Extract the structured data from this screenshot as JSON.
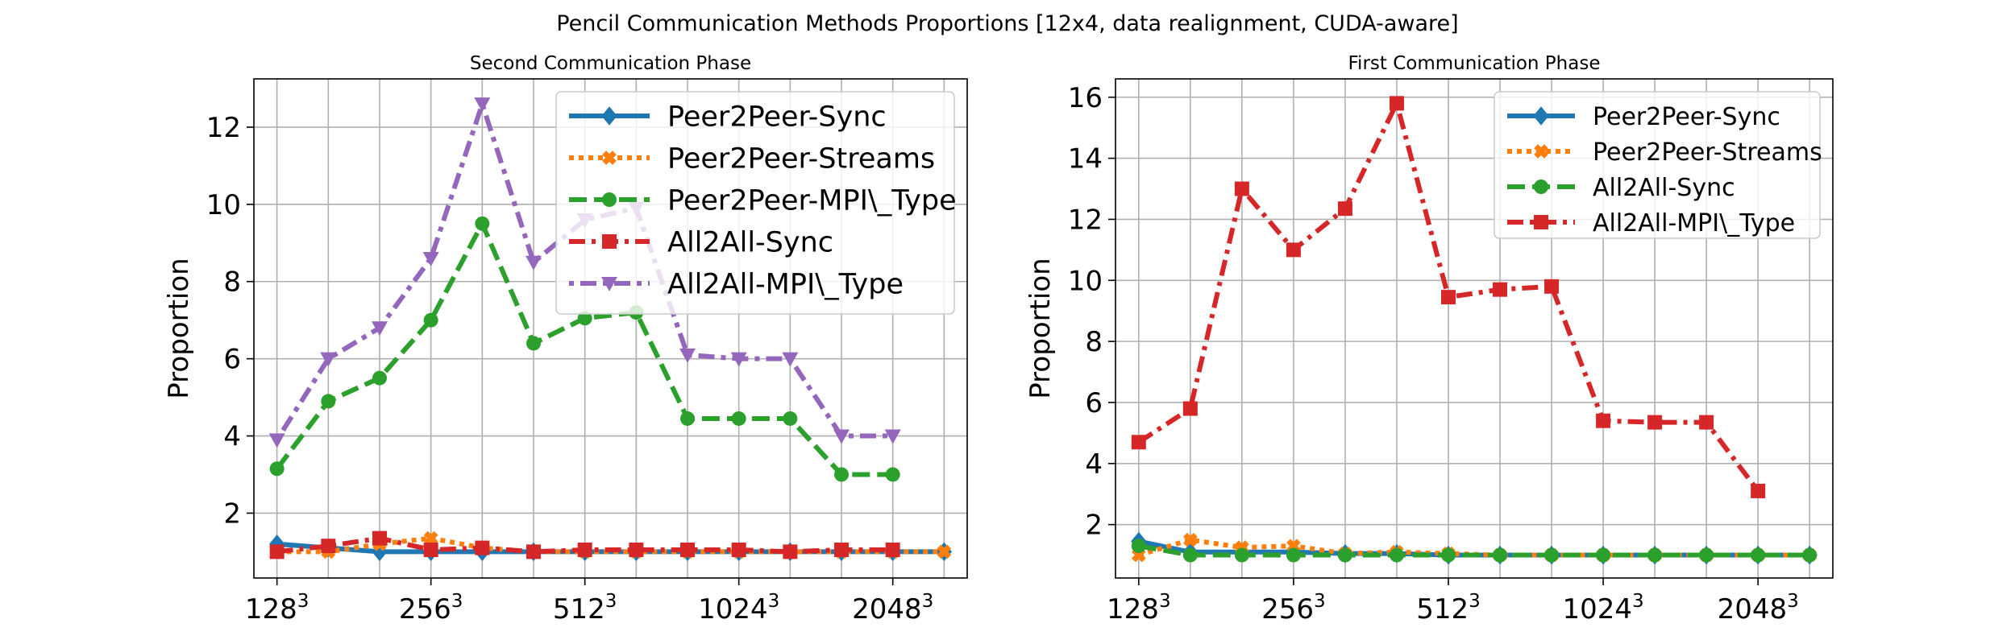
{
  "figure": {
    "suptitle": "Pencil Communication Methods Proportions [12x4, data realignment, CUDA-aware]"
  },
  "chart_data": [
    {
      "type": "line",
      "title": "Second Communication Phase",
      "xlabel": "",
      "ylabel": "Proportion",
      "x": [
        1,
        2,
        3,
        4,
        5,
        6,
        7,
        8,
        9,
        10,
        11,
        12,
        13,
        14
      ],
      "xtick_positions": [
        1,
        4,
        7,
        10,
        13
      ],
      "xtick_labels": [
        {
          "base": "128",
          "exp": "3"
        },
        {
          "base": "256",
          "exp": "3"
        },
        {
          "base": "512",
          "exp": "3"
        },
        {
          "base": "1024",
          "exp": "3"
        },
        {
          "base": "2048",
          "exp": "3"
        }
      ],
      "yticks": [
        2,
        4,
        6,
        8,
        10,
        12
      ],
      "xlim": [
        0.55,
        14.45
      ],
      "ylim": [
        0.32,
        13.25
      ],
      "grid": true,
      "legend_position": "upper-right",
      "series": [
        {
          "name": "Peer2Peer-Sync",
          "color": "#1f77b4",
          "dash": "solid",
          "marker": "diamond",
          "values": [
            1.2,
            1.1,
            1.0,
            1.0,
            1.0,
            1.0,
            1.0,
            1.0,
            1.0,
            1.0,
            1.0,
            1.0,
            1.0,
            1.0
          ]
        },
        {
          "name": "Peer2Peer-Streams",
          "color": "#ff7f0e",
          "dash": "dotted",
          "marker": "x",
          "values": [
            1.0,
            1.0,
            1.2,
            1.35,
            1.1,
            1.0,
            1.0,
            1.0,
            1.0,
            1.0,
            1.0,
            1.0,
            1.0,
            1.0
          ]
        },
        {
          "name": "Peer2Peer-MPI\\_Type",
          "color": "#2ca02c",
          "dash": "dashed",
          "marker": "circle",
          "values": [
            3.15,
            4.9,
            5.5,
            7.0,
            9.5,
            6.4,
            7.05,
            7.2,
            4.45,
            4.45,
            4.45,
            3.0,
            3.0,
            null
          ]
        },
        {
          "name": "All2All-Sync",
          "color": "#d62728",
          "dash": "dashdot",
          "marker": "square",
          "values": [
            1.0,
            1.15,
            1.35,
            1.05,
            1.1,
            1.0,
            1.05,
            1.05,
            1.05,
            1.05,
            1.0,
            1.05,
            1.05,
            null
          ]
        },
        {
          "name": "All2All-MPI\\_Type",
          "color": "#9467bd",
          "dash": "dotdashwide",
          "marker": "triangle-down",
          "values": [
            3.9,
            6.0,
            6.8,
            8.6,
            12.6,
            8.5,
            9.6,
            9.9,
            6.1,
            6.0,
            6.0,
            4.0,
            4.0,
            null
          ]
        }
      ]
    },
    {
      "type": "line",
      "title": "First Communication Phase",
      "xlabel": "",
      "ylabel": "Proportion",
      "x": [
        1,
        2,
        3,
        4,
        5,
        6,
        7,
        8,
        9,
        10,
        11,
        12,
        13,
        14
      ],
      "xtick_positions": [
        1,
        4,
        7,
        10,
        13
      ],
      "xtick_labels": [
        {
          "base": "128",
          "exp": "3"
        },
        {
          "base": "256",
          "exp": "3"
        },
        {
          "base": "512",
          "exp": "3"
        },
        {
          "base": "1024",
          "exp": "3"
        },
        {
          "base": "2048",
          "exp": "3"
        }
      ],
      "yticks": [
        2,
        4,
        6,
        8,
        10,
        12,
        14,
        16
      ],
      "xlim": [
        0.55,
        14.45
      ],
      "ylim": [
        0.25,
        16.6
      ],
      "grid": true,
      "legend_position": "upper-right",
      "series": [
        {
          "name": "Peer2Peer-Sync",
          "color": "#1f77b4",
          "dash": "solid",
          "marker": "diamond",
          "values": [
            1.45,
            1.1,
            1.1,
            1.1,
            1.05,
            1.05,
            1.0,
            1.0,
            1.0,
            1.0,
            1.0,
            1.0,
            1.0,
            1.0
          ]
        },
        {
          "name": "Peer2Peer-Streams",
          "color": "#ff7f0e",
          "dash": "dotted",
          "marker": "x",
          "values": [
            1.0,
            1.5,
            1.25,
            1.3,
            1.05,
            1.1,
            1.05,
            1.0,
            1.0,
            1.0,
            1.0,
            1.0,
            1.0,
            1.0
          ]
        },
        {
          "name": "All2All-Sync",
          "color": "#2ca02c",
          "dash": "dashed",
          "marker": "circle",
          "values": [
            1.3,
            1.0,
            1.0,
            1.0,
            1.0,
            1.0,
            1.0,
            1.0,
            1.0,
            1.0,
            1.0,
            1.0,
            1.0,
            1.0
          ]
        },
        {
          "name": "All2All-MPI\\_Type",
          "color": "#d62728",
          "dash": "dashdot",
          "marker": "square",
          "values": [
            4.7,
            5.8,
            13.0,
            11.0,
            12.35,
            15.8,
            9.45,
            9.7,
            9.8,
            5.4,
            5.35,
            5.35,
            3.1,
            null
          ]
        }
      ]
    }
  ]
}
